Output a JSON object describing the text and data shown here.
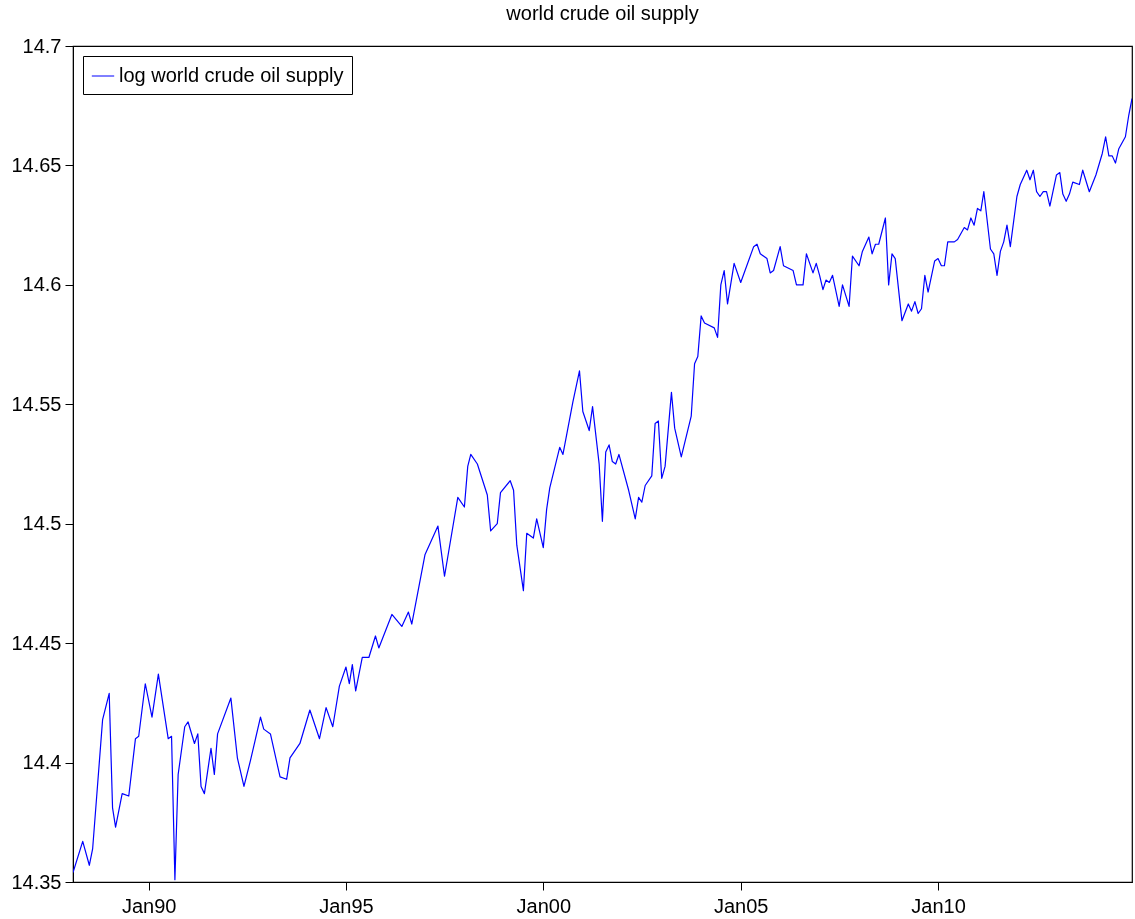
{
  "chart_data": {
    "type": "line",
    "title": "world crude oil supply",
    "x": [
      "1988-02",
      "1988-05",
      "1988-07",
      "1988-08",
      "1988-11",
      "1989-01",
      "1989-02",
      "1989-03",
      "1989-05",
      "1989-07",
      "1989-09",
      "1989-10",
      "1989-12",
      "1990-02",
      "1990-04",
      "1990-07",
      "1990-08",
      "1990-09",
      "1990-10",
      "1990-12",
      "1991-01",
      "1991-03",
      "1991-04",
      "1991-05",
      "1991-06",
      "1991-08",
      "1991-09",
      "1991-10",
      "1992-02",
      "1992-04",
      "1992-06",
      "1992-08",
      "1992-11",
      "1992-12",
      "1993-02",
      "1993-05",
      "1993-07",
      "1993-08",
      "1993-11",
      "1994-02",
      "1994-05",
      "1994-07",
      "1994-09",
      "1994-11",
      "1995-01",
      "1995-02",
      "1995-03",
      "1995-04",
      "1995-06",
      "1995-08",
      "1995-10",
      "1995-11",
      "1996-03",
      "1996-06",
      "1996-08",
      "1996-09",
      "1997-01",
      "1997-05",
      "1997-07",
      "1997-11",
      "1998-01",
      "1998-02",
      "1998-03",
      "1998-05",
      "1998-08",
      "1998-09",
      "1998-11",
      "1998-12",
      "1999-03",
      "1999-04",
      "1999-05",
      "1999-07",
      "1999-08",
      "1999-10",
      "1999-11",
      "2000-01",
      "2000-02",
      "2000-03",
      "2000-06",
      "2000-07",
      "2000-10",
      "2000-12",
      "2001-01",
      "2001-03",
      "2001-04",
      "2001-06",
      "2001-07",
      "2001-08",
      "2001-09",
      "2001-10",
      "2001-11",
      "2001-12",
      "2002-03",
      "2002-05",
      "2002-06",
      "2002-07",
      "2002-08",
      "2002-10",
      "2002-11",
      "2002-12",
      "2003-01",
      "2003-02",
      "2003-04",
      "2003-05",
      "2003-07",
      "2003-10",
      "2003-11",
      "2003-12",
      "2004-01",
      "2004-02",
      "2004-05",
      "2004-06",
      "2004-07",
      "2004-08",
      "2004-09",
      "2004-11",
      "2005-01",
      "2005-05",
      "2005-06",
      "2005-07",
      "2005-09",
      "2005-10",
      "2005-11",
      "2006-01",
      "2006-02",
      "2006-05",
      "2006-06",
      "2006-08",
      "2006-09",
      "2006-11",
      "2006-12",
      "2007-01",
      "2007-02",
      "2007-03",
      "2007-04",
      "2007-05",
      "2007-07",
      "2007-08",
      "2007-10",
      "2007-11",
      "2008-01",
      "2008-02",
      "2008-04",
      "2008-05",
      "2008-06",
      "2008-07",
      "2008-09",
      "2008-10",
      "2008-11",
      "2008-12",
      "2009-02",
      "2009-04",
      "2009-05",
      "2009-06",
      "2009-07",
      "2009-08",
      "2009-09",
      "2009-10",
      "2009-12",
      "2010-01",
      "2010-02",
      "2010-03",
      "2010-04",
      "2010-06",
      "2010-07",
      "2010-09",
      "2010-10",
      "2010-11",
      "2010-12",
      "2011-01",
      "2011-02",
      "2011-03",
      "2011-05",
      "2011-06",
      "2011-07",
      "2011-08",
      "2011-09",
      "2011-10",
      "2011-11",
      "2012-01",
      "2012-02",
      "2012-04",
      "2012-05",
      "2012-06",
      "2012-07",
      "2012-08",
      "2012-09",
      "2012-10",
      "2012-11",
      "2013-01",
      "2013-02",
      "2013-03",
      "2013-04",
      "2013-05",
      "2013-06",
      "2013-08",
      "2013-09",
      "2013-11",
      "2014-01",
      "2014-03",
      "2014-04",
      "2014-05",
      "2014-06",
      "2014-07",
      "2014-08",
      "2014-10",
      "2014-11",
      "2014-12"
    ],
    "series": [
      {
        "name": "log world crude oil supply",
        "color": "#0000ff",
        "values": [
          14.354,
          14.367,
          14.357,
          14.364,
          14.418,
          14.429,
          14.381,
          14.373,
          14.387,
          14.386,
          14.41,
          14.411,
          14.433,
          14.419,
          14.437,
          14.41,
          14.411,
          14.351,
          14.395,
          14.415,
          14.417,
          14.408,
          14.412,
          14.39,
          14.387,
          14.406,
          14.395,
          14.412,
          14.427,
          14.402,
          14.39,
          14.401,
          14.419,
          14.414,
          14.412,
          14.394,
          14.393,
          14.402,
          14.408,
          14.422,
          14.41,
          14.423,
          14.415,
          14.432,
          14.44,
          14.433,
          14.441,
          14.43,
          14.444,
          14.444,
          14.453,
          14.448,
          14.462,
          14.457,
          14.463,
          14.458,
          14.487,
          14.499,
          14.478,
          14.511,
          14.507,
          14.524,
          14.529,
          14.525,
          14.512,
          14.497,
          14.5,
          14.513,
          14.518,
          14.514,
          14.491,
          14.472,
          14.496,
          14.494,
          14.502,
          14.49,
          14.506,
          14.515,
          14.532,
          14.529,
          14.551,
          14.564,
          14.547,
          14.539,
          14.549,
          14.525,
          14.501,
          14.53,
          14.533,
          14.526,
          14.525,
          14.529,
          14.514,
          14.502,
          14.511,
          14.509,
          14.516,
          14.52,
          14.542,
          14.543,
          14.519,
          14.524,
          14.555,
          14.54,
          14.528,
          14.545,
          14.567,
          14.57,
          14.587,
          14.584,
          14.582,
          14.578,
          14.6,
          14.606,
          14.592,
          14.609,
          14.601,
          14.616,
          14.617,
          14.613,
          14.611,
          14.605,
          14.606,
          14.616,
          14.608,
          14.606,
          14.6,
          14.6,
          14.613,
          14.605,
          14.609,
          14.604,
          14.598,
          14.602,
          14.601,
          14.604,
          14.591,
          14.6,
          14.591,
          14.612,
          14.608,
          14.614,
          14.62,
          14.613,
          14.617,
          14.617,
          14.628,
          14.6,
          14.613,
          14.611,
          14.585,
          14.592,
          14.589,
          14.593,
          14.588,
          14.59,
          14.604,
          14.597,
          14.61,
          14.611,
          14.608,
          14.608,
          14.618,
          14.618,
          14.619,
          14.624,
          14.623,
          14.628,
          14.625,
          14.632,
          14.631,
          14.639,
          14.615,
          14.613,
          14.604,
          14.614,
          14.618,
          14.625,
          14.616,
          14.637,
          14.642,
          14.648,
          14.644,
          14.648,
          14.639,
          14.637,
          14.639,
          14.639,
          14.633,
          14.646,
          14.647,
          14.638,
          14.635,
          14.638,
          14.643,
          14.642,
          14.648,
          14.639,
          14.646,
          14.655,
          14.662,
          14.654,
          14.654,
          14.651,
          14.657,
          14.662,
          14.671,
          14.678
        ]
      }
    ],
    "xlim": [
      "1988-02-01",
      "2014-12-01"
    ],
    "xticks": [
      {
        "value": "1990-01",
        "label": "Jan90"
      },
      {
        "value": "1995-01",
        "label": "Jan95"
      },
      {
        "value": "2000-01",
        "label": "Jan00"
      },
      {
        "value": "2005-01",
        "label": "Jan05"
      },
      {
        "value": "2010-01",
        "label": "Jan10"
      }
    ],
    "ylim": [
      14.35,
      14.7
    ],
    "yticks": [
      14.35,
      14.4,
      14.45,
      14.5,
      14.55,
      14.6,
      14.65,
      14.7
    ],
    "legend": "top left",
    "grid": false,
    "line_style": "solid",
    "marker": "none"
  }
}
